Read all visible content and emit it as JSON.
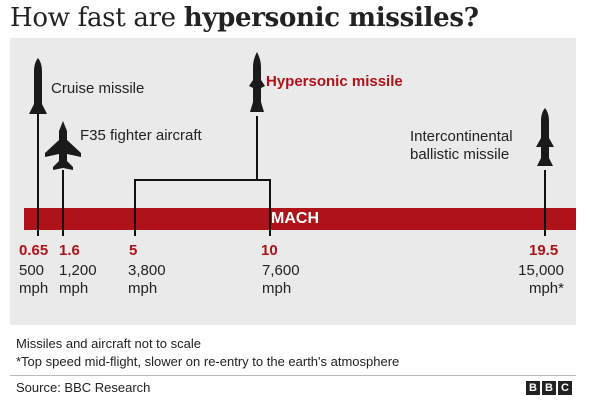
{
  "header": {
    "title_plain": "How fast are ",
    "title_bold": "hypersonic missiles?"
  },
  "labels": {
    "cruise": "Cruise missile",
    "f35": "F35 fighter aircraft",
    "hypersonic": "Hypersonic missile",
    "icbm_line1": "Intercontinental",
    "icbm_line2": "ballistic missile",
    "mach": "MACH"
  },
  "scale": [
    {
      "mach": "0.65",
      "mph_value": "500",
      "mph_unit": "mph"
    },
    {
      "mach": "1.6",
      "mph_value": "1,200",
      "mph_unit": "mph"
    },
    {
      "mach": "5",
      "mph_value": "3,800",
      "mph_unit": "mph"
    },
    {
      "mach": "10",
      "mph_value": "7,600",
      "mph_unit": "mph"
    },
    {
      "mach": "19.5",
      "mph_value": "15,000",
      "mph_unit": "mph*"
    }
  ],
  "notes": {
    "scale_note": "Missiles and aircraft not to scale",
    "footnote": "*Top speed mid-flight, slower on re-entry to the earth's atmosphere"
  },
  "footer": {
    "source": "Source: BBC Research",
    "logo_letters": [
      "B",
      "B",
      "C"
    ]
  },
  "colors": {
    "accent_red": "#b0121a",
    "panel_grey": "#eaeaea",
    "text": "#222222"
  },
  "icons": [
    "cruise-missile-icon",
    "fighter-jet-icon",
    "hypersonic-missile-icon",
    "icbm-icon"
  ]
}
